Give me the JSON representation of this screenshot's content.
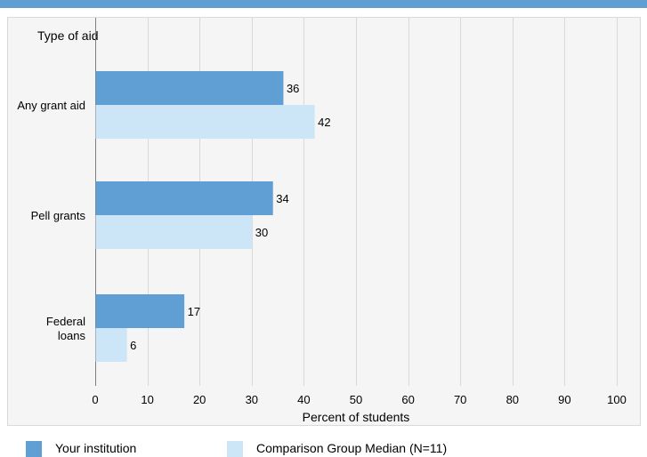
{
  "colors": {
    "header_bar": "#5f9fd4",
    "your_institution": "#5f9fd4",
    "comparison_group": "#cce6f7",
    "grid": "#d9d9d9",
    "axis": "#7f7f7f"
  },
  "chart_data": {
    "type": "bar",
    "orientation": "horizontal",
    "y_axis_title": "Type of aid",
    "xlabel": "Percent of students",
    "xlim": [
      0,
      100
    ],
    "x_ticks": [
      "0",
      "10",
      "20",
      "30",
      "40",
      "50",
      "60",
      "70",
      "80",
      "90",
      "100"
    ],
    "categories": [
      "Any grant aid",
      "Pell grants",
      "Federal loans"
    ],
    "category_lines": [
      [
        "Any grant aid"
      ],
      [
        "Pell grants"
      ],
      [
        "Federal",
        "loans"
      ]
    ],
    "series": [
      {
        "name": "Your institution",
        "values": [
          36,
          34,
          17
        ],
        "value_labels": [
          "36",
          "34",
          "17"
        ]
      },
      {
        "name": "Comparison Group Median (N=11)",
        "values": [
          42,
          30,
          6
        ],
        "value_labels": [
          "42",
          "30",
          "6"
        ]
      }
    ],
    "grid": true,
    "legend_position": "bottom"
  }
}
